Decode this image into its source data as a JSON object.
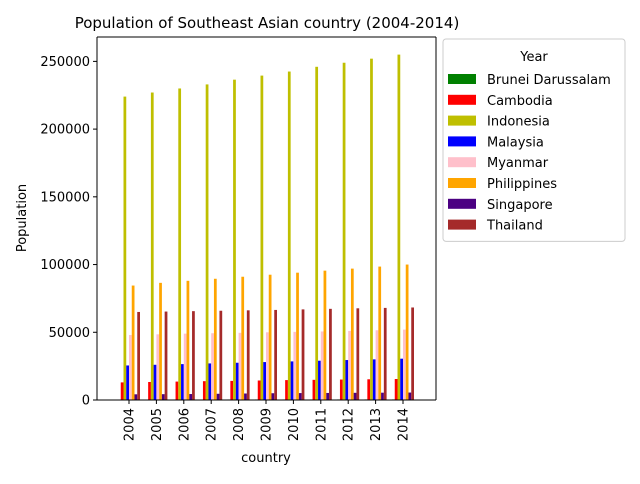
{
  "chart_data": {
    "type": "bar",
    "title": "Population of Southeast Asian country (2004-2014)",
    "xlabel": "country",
    "ylabel": "Population",
    "ylim": [
      0,
      268000
    ],
    "yticks": [
      0,
      50000,
      100000,
      150000,
      200000,
      250000
    ],
    "categories": [
      "2004",
      "2005",
      "2006",
      "2007",
      "2008",
      "2009",
      "2010",
      "2011",
      "2012",
      "2013",
      "2014"
    ],
    "legend": {
      "title": "Year",
      "placement": "outside-right-top"
    },
    "grid": false,
    "series": [
      {
        "name": "Brunei Darussalam",
        "color": "#008000",
        "values": [
          360,
          367,
          374,
          381,
          388,
          395,
          402,
          409,
          416,
          423,
          430
        ]
      },
      {
        "name": "Cambodia",
        "color": "#ff0000",
        "values": [
          13000,
          13300,
          13600,
          13900,
          14100,
          14400,
          14700,
          14900,
          15100,
          15300,
          15500
        ]
      },
      {
        "name": "Indonesia",
        "color": "#bfbf00",
        "values": [
          224000,
          227000,
          230000,
          233000,
          236500,
          239500,
          242500,
          246000,
          249000,
          252000,
          255000
        ]
      },
      {
        "name": "Malaysia",
        "color": "#0000ff",
        "values": [
          25500,
          26000,
          26500,
          27000,
          27500,
          28000,
          28500,
          29000,
          29500,
          30000,
          30500
        ]
      },
      {
        "name": "Myanmar",
        "color": "#ffc0cb",
        "values": [
          48000,
          48500,
          49000,
          49300,
          49600,
          50000,
          50300,
          50600,
          51000,
          51500,
          52000
        ]
      },
      {
        "name": "Philippines",
        "color": "#ffa500",
        "values": [
          84500,
          86500,
          88000,
          89500,
          91000,
          92500,
          94000,
          95500,
          97000,
          98500,
          100000
        ]
      },
      {
        "name": "Singapore",
        "color": "#4b0082",
        "values": [
          4200,
          4300,
          4400,
          4600,
          4800,
          5000,
          5100,
          5200,
          5300,
          5400,
          5500
        ]
      },
      {
        "name": "Thailand",
        "color": "#a52a2a",
        "values": [
          65000,
          65300,
          65600,
          65900,
          66200,
          66500,
          66900,
          67300,
          67700,
          68000,
          68300
        ]
      }
    ]
  }
}
